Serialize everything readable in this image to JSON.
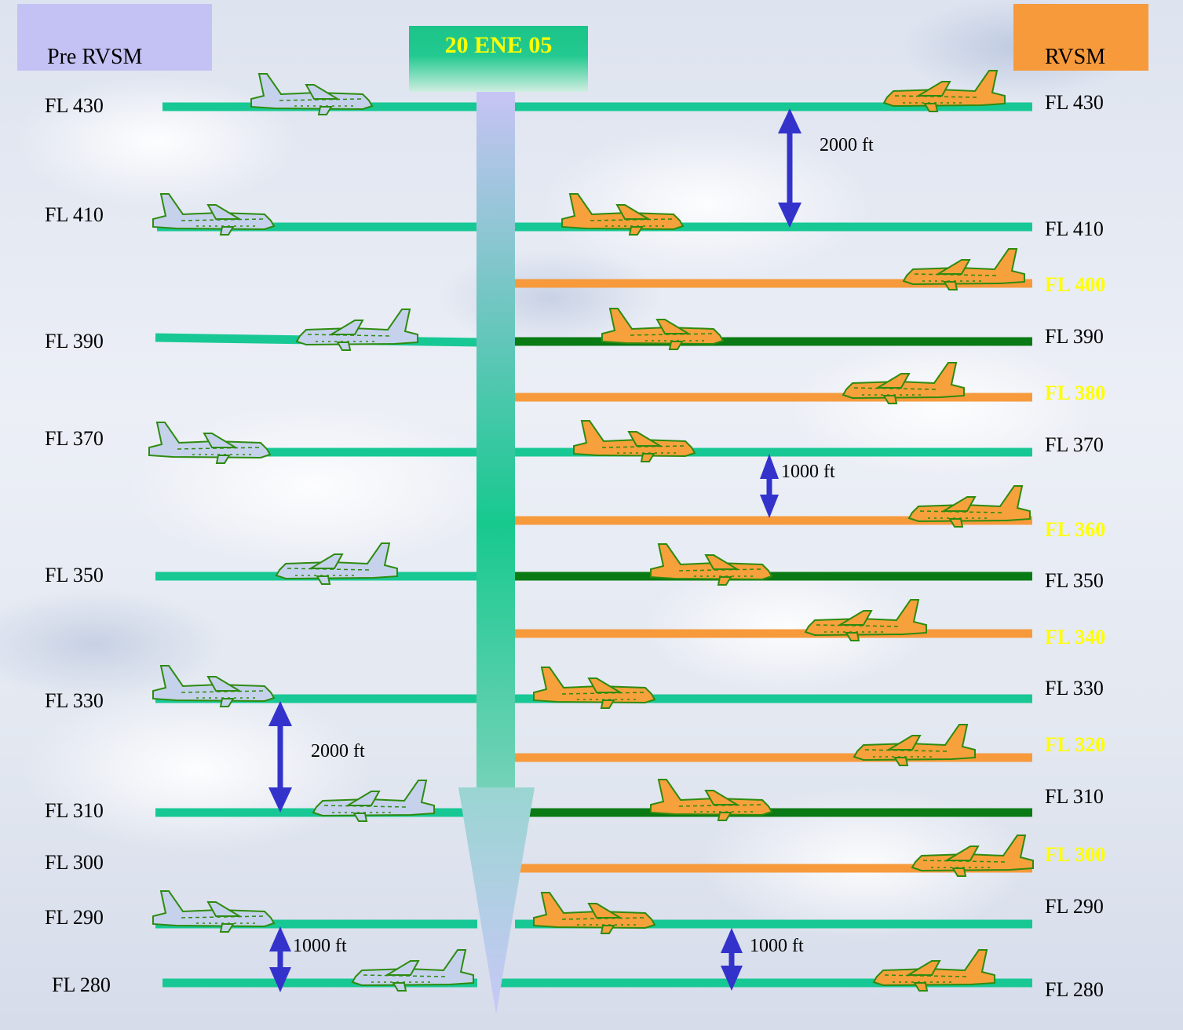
{
  "headers": {
    "pre_rvsm": "Pre RVSM",
    "rvsm": "RVSM",
    "date": "20  ENE  05"
  },
  "left_levels": [
    "FL 430",
    "FL 410",
    "FL 390",
    "FL 370",
    "FL 350",
    "FL 330",
    "FL 310",
    "FL 300",
    "FL 290",
    "FL 280"
  ],
  "right_levels": {
    "standard": [
      "FL 430",
      "FL 410",
      "FL 390",
      "FL 370",
      "FL 350",
      "FL 330",
      "FL 310",
      "FL 290",
      "FL 280"
    ],
    "new": [
      "FL 400",
      "FL 380",
      "FL 360",
      "FL 340",
      "FL 320",
      "FL 300"
    ]
  },
  "separations": {
    "top_right": "2000 ft",
    "mid_right": "1000 ft",
    "left_mid": "2000 ft",
    "left_bottom": "1000 ft",
    "right_bottom": "1000 ft"
  },
  "colors": {
    "pre_rvsm_box": "#c4c2f4",
    "rvsm_box": "#f79a3c",
    "standard_line": "#18c894",
    "rvsm_new_line": "#f79a3c",
    "dark_line": "#0a7a14",
    "arrow": "#3333cc",
    "new_level_text": "#ffff00",
    "plane_pre": "#c6d2ec",
    "plane_rvsm": "#f7a13c",
    "plane_outline": "#2e8b10"
  }
}
